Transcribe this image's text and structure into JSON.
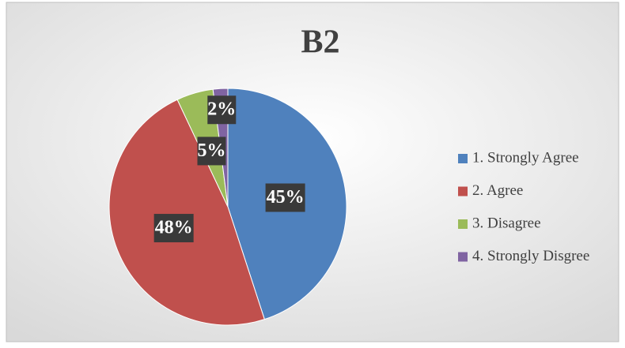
{
  "chart_data": {
    "type": "pie",
    "title": "B2",
    "categories": [
      "1. Strongly Agree",
      "2. Agree",
      "3. Disagree",
      "4. Strongly Disgree"
    ],
    "values": [
      45,
      48,
      5,
      2
    ],
    "value_labels": [
      "45%",
      "48%",
      "5%",
      "2%"
    ],
    "colors": [
      "#4f81bd",
      "#c0504d",
      "#9bbb59",
      "#8064a2"
    ],
    "legend": "right"
  }
}
